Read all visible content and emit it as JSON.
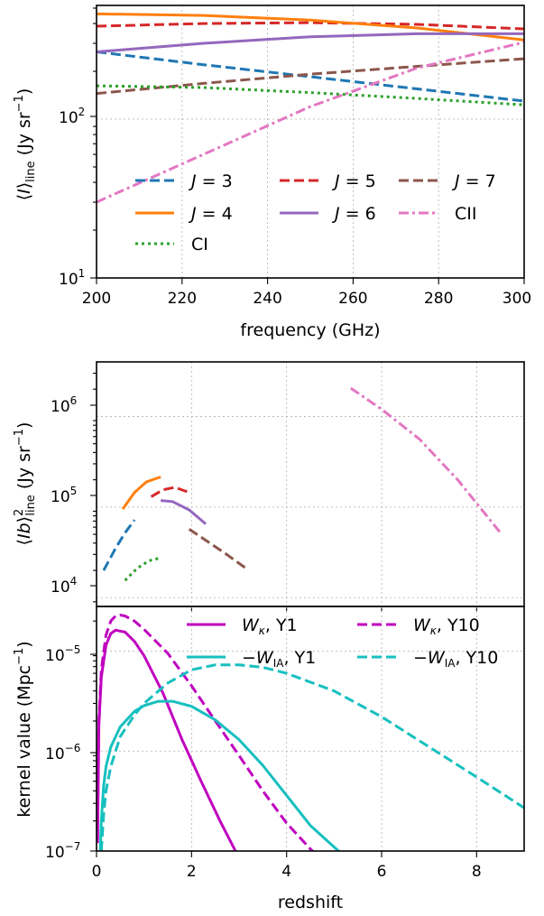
{
  "chart_data": [
    {
      "type": "line",
      "xlabel": "frequency (GHz)",
      "ylabel": "⟨I⟩_line (Jy sr⁻¹)",
      "xlim": [
        200,
        300
      ],
      "ylim": [
        10,
        520
      ],
      "y_scale": "log",
      "grid": true,
      "legend": "bottom, 3 columns",
      "x_ticks": [
        "200",
        "220",
        "240",
        "260",
        "280",
        "300"
      ],
      "y_ticks": [
        "10¹",
        "10²"
      ],
      "series": [
        {
          "name": "J = 3",
          "color": "#1f77b4",
          "dash": "dashed",
          "x": [
            200,
            225,
            250,
            275,
            300
          ],
          "y": [
            265,
            220,
            185,
            155,
            130
          ]
        },
        {
          "name": "J = 5",
          "color": "#d62728",
          "dash": "dashed",
          "x": [
            200,
            225,
            250,
            275,
            300
          ],
          "y": [
            385,
            400,
            405,
            395,
            370
          ]
        },
        {
          "name": "J = 7",
          "color": "#8c564b",
          "dash": "dashed",
          "x": [
            200,
            225,
            250,
            275,
            300
          ],
          "y": [
            145,
            168,
            192,
            215,
            240
          ]
        },
        {
          "name": "J = 4",
          "color": "#ff7f0e",
          "dash": "solid",
          "x": [
            200,
            225,
            250,
            275,
            300
          ],
          "y": [
            460,
            450,
            420,
            375,
            315
          ]
        },
        {
          "name": "J = 6",
          "color": "#9467bd",
          "dash": "solid",
          "x": [
            200,
            225,
            250,
            275,
            300
          ],
          "y": [
            265,
            300,
            330,
            345,
            345
          ]
        },
        {
          "name": "CII",
          "color": "#e377c2",
          "dash": "dashdot",
          "x": [
            200,
            225,
            250,
            275,
            300
          ],
          "y": [
            30,
            60,
            120,
            210,
            305
          ]
        },
        {
          "name": "CI",
          "color": "#2ca02c",
          "dash": "dotted",
          "x": [
            200,
            225,
            250,
            275,
            300
          ],
          "y": [
            162,
            158,
            147,
            135,
            123
          ]
        }
      ]
    },
    {
      "type": "line",
      "xlabel": "",
      "ylabel": "⟨Ib⟩²_line (Jy sr⁻¹)",
      "xlim": [
        0,
        9
      ],
      "ylim": [
        8000,
        4000000
      ],
      "y_scale": "log",
      "grid": true,
      "y_ticks": [
        "10⁴",
        "10⁵",
        "10⁶"
      ],
      "series": [
        {
          "color": "#1f77b4",
          "dash": "dashed",
          "x": [
            0.15,
            0.4,
            0.6,
            0.8
          ],
          "y": [
            20000,
            35000,
            52000,
            72000
          ]
        },
        {
          "color": "#ff7f0e",
          "dash": "solid",
          "x": [
            0.55,
            0.8,
            1.05,
            1.35
          ],
          "y": [
            95000,
            145000,
            190000,
            215000
          ]
        },
        {
          "color": "#d62728",
          "dash": "dashed",
          "x": [
            1.15,
            1.4,
            1.65,
            1.95
          ],
          "y": [
            130000,
            155000,
            165000,
            145000
          ]
        },
        {
          "color": "#9467bd",
          "dash": "solid",
          "x": [
            1.35,
            1.6,
            1.95,
            2.3
          ],
          "y": [
            118000,
            115000,
            93000,
            65000
          ]
        },
        {
          "color": "#8c564b",
          "dash": "dashed",
          "x": [
            1.95,
            2.3,
            2.7,
            3.15
          ],
          "y": [
            57000,
            43000,
            31000,
            21000
          ]
        },
        {
          "color": "#2ca02c",
          "dash": "dotted",
          "x": [
            0.6,
            0.85,
            1.1,
            1.35
          ],
          "y": [
            15500,
            21000,
            25500,
            27500
          ]
        },
        {
          "color": "#e377c2",
          "dash": "dashdot",
          "x": [
            5.35,
            6.0,
            6.8,
            7.6,
            8.5
          ],
          "y": [
            2050000,
            1200000,
            560000,
            200000,
            52000
          ]
        }
      ]
    },
    {
      "type": "line",
      "xlabel": "redshift",
      "ylabel": "kernel value (Mpc⁻¹)",
      "xlim": [
        0,
        9
      ],
      "ylim": [
        1e-07,
        2.8e-05
      ],
      "y_scale": "log",
      "grid": true,
      "legend": "top-right, 2 columns",
      "x_ticks": [
        "0",
        "2",
        "4",
        "6",
        "8"
      ],
      "y_ticks": [
        "10⁻⁷",
        "10⁻⁶",
        "10⁻⁵"
      ],
      "series": [
        {
          "name": "Wκ, Y1",
          "color": "#bf00bf",
          "dash": "solid",
          "x": [
            0.02,
            0.05,
            0.1,
            0.2,
            0.3,
            0.4,
            0.6,
            0.8,
            1.0,
            1.4,
            1.8,
            2.2,
            2.6,
            3.0
          ],
          "y": [
            1.2e-07,
            1.8e-06,
            5.5e-06,
            1.15e-05,
            1.5e-05,
            1.62e-05,
            1.55e-05,
            1.25e-05,
            9e-06,
            3.8e-06,
            1.3e-06,
            5e-07,
            2e-07,
            8.5e-08
          ]
        },
        {
          "name": "Wκ, Y10",
          "color": "#bf00bf",
          "dash": "dashed",
          "x": [
            0.02,
            0.05,
            0.1,
            0.2,
            0.3,
            0.4,
            0.5,
            0.6,
            0.8,
            1.0,
            1.5,
            2.0,
            2.5,
            3.0,
            3.5,
            4.0,
            4.5,
            4.7
          ],
          "y": [
            1.3e-07,
            2e-06,
            6.5e-06,
            1.45e-05,
            2e-05,
            2.25e-05,
            2.3e-05,
            2.25e-05,
            2e-05,
            1.65e-05,
            9.5e-06,
            4.5e-06,
            2e-06,
            9e-07,
            4e-07,
            1.9e-07,
            1.05e-07,
            8.5e-08
          ]
        },
        {
          "name": "−WIA, Y1",
          "color": "#17bfbf",
          "dash": "solid",
          "x": [
            0.08,
            0.1,
            0.15,
            0.2,
            0.3,
            0.5,
            0.8,
            1.0,
            1.3,
            1.6,
            2.0,
            2.5,
            3.0,
            3.5,
            4.0,
            4.5,
            5.2
          ],
          "y": [
            1e-07,
            2e-07,
            4.5e-07,
            7e-07,
            1.1e-06,
            1.75e-06,
            2.5e-06,
            2.85e-06,
            3.15e-06,
            3.15e-06,
            2.8e-06,
            2.05e-06,
            1.3e-06,
            7.2e-07,
            3.6e-07,
            1.8e-07,
            9e-08
          ]
        },
        {
          "name": "−WIA, Y10",
          "color": "#17bfbf",
          "dash": "dashed",
          "x": [
            0.1,
            0.15,
            0.2,
            0.3,
            0.5,
            0.8,
            1.0,
            1.5,
            2.0,
            2.5,
            3.0,
            3.5,
            4.0,
            5.0,
            6.0,
            7.0,
            8.0,
            9.0
          ],
          "y": [
            1e-07,
            2.3e-07,
            4e-07,
            7e-07,
            1.4e-06,
            2.3e-06,
            3e-06,
            4.8e-06,
            6.5e-06,
            7.3e-06,
            7.3e-06,
            6.9e-06,
            6e-06,
            4e-06,
            2.2e-06,
            1.1e-06,
            5.5e-07,
            2.7e-07
          ]
        }
      ]
    }
  ],
  "text": {
    "p1_xlabel": "frequency (GHz)",
    "p1_ylabel_pre": "⟨",
    "p1_ylabel_I": "I",
    "p1_ylabel_close": "⟩",
    "p1_ylabel_sub": "line",
    "p1_ylabel_unit": " (Jy sr",
    "p1_ylabel_exp": "−1",
    "p1_ylabel_end": ")",
    "p2_ylabel_pre": "⟨",
    "p2_ylabel_I": "Ib",
    "p2_ylabel_close": "⟩",
    "p2_ylabel_sup": "2",
    "p2_ylabel_sub": "line",
    "p2_ylabel_unit": " (Jy sr",
    "p2_ylabel_exp": "−1",
    "p2_ylabel_end": ")",
    "p3_xlabel": "redshift",
    "p3_ylabel_main": "kernel value (Mpc",
    "p3_ylabel_exp": "−1",
    "p3_ylabel_end": ")",
    "tick_10": "10",
    "exp_1": "1",
    "exp_2": "2",
    "exp_4": "4",
    "exp_5": "5",
    "exp_6": "6",
    "exp_m5": "−5",
    "exp_m6": "−6",
    "exp_m7": "−7",
    "x1_200": "200",
    "x1_220": "220",
    "x1_240": "240",
    "x1_260": "260",
    "x1_280": "280",
    "x1_300": "300",
    "x3_0": "0",
    "x3_2": "2",
    "x3_4": "4",
    "x3_6": "6",
    "x3_8": "8",
    "leg_J": "J",
    "leg_eq3": " = 3",
    "leg_eq4": " = 4",
    "leg_eq5": " = 5",
    "leg_eq6": " = 6",
    "leg_eq7": " = 7",
    "leg_CI": "CI",
    "leg_CII": "CII",
    "leg_W": "W",
    "leg_kappa": "κ",
    "leg_minus": "−",
    "leg_IA": "IA",
    "leg_Y1": ", Y1",
    "leg_Y10": ", Y10"
  }
}
